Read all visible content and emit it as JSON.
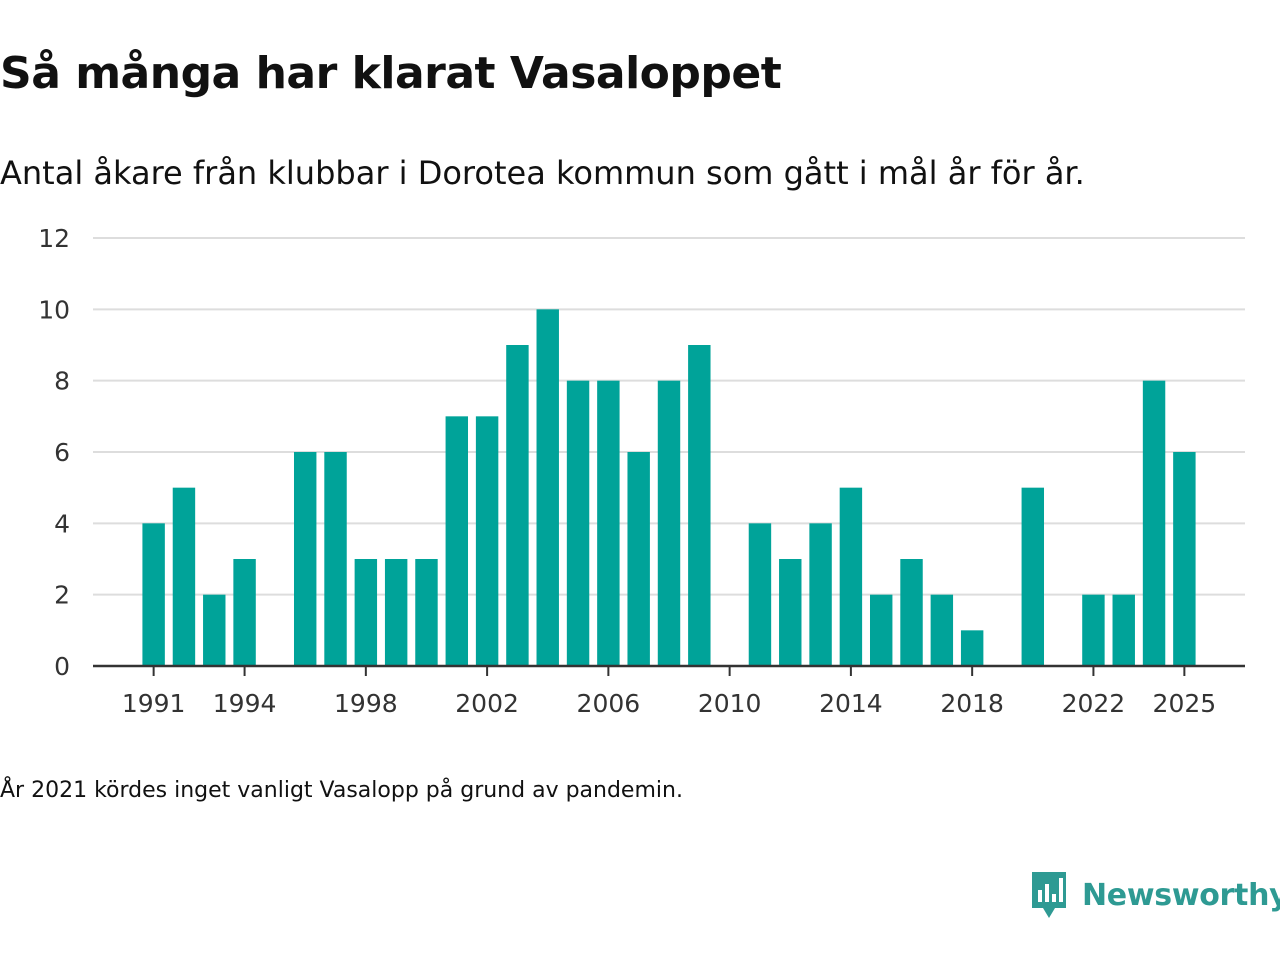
{
  "title": "Så många har klarat Vasaloppet",
  "subtitle": "Antal åkare från klubbar i Dorotea kommun som gått i mål år för år.",
  "footnote": "År 2021 kördes inget vanligt Vasalopp på grund av pandemin.",
  "brand": {
    "name": "Newsworthy",
    "icon": "newsworthy-logo-icon"
  },
  "colors": {
    "bar": "#00a399",
    "grid": "#dddddd",
    "axis": "#333333",
    "brand": "#2e9a93"
  },
  "chart_data": {
    "type": "bar",
    "title": "Så många har klarat Vasaloppet",
    "xlabel": "",
    "ylabel": "",
    "ylim": [
      0,
      12
    ],
    "yticks": [
      0,
      2,
      4,
      6,
      8,
      10,
      12
    ],
    "xticks": [
      1991,
      1994,
      1998,
      2002,
      2006,
      2010,
      2014,
      2018,
      2022,
      2025
    ],
    "xlim": [
      1989,
      2027
    ],
    "grid": true,
    "categories": [
      1991,
      1992,
      1993,
      1994,
      1996,
      1997,
      1998,
      1999,
      2000,
      2001,
      2002,
      2003,
      2004,
      2005,
      2006,
      2007,
      2008,
      2009,
      2011,
      2012,
      2013,
      2014,
      2015,
      2016,
      2017,
      2018,
      2020,
      2022,
      2023,
      2024,
      2025
    ],
    "values": [
      4,
      5,
      2,
      3,
      6,
      6,
      3,
      3,
      3,
      7,
      7,
      9,
      10,
      8,
      8,
      6,
      8,
      9,
      4,
      3,
      4,
      5,
      2,
      3,
      2,
      1,
      5,
      2,
      2,
      8,
      6
    ]
  }
}
